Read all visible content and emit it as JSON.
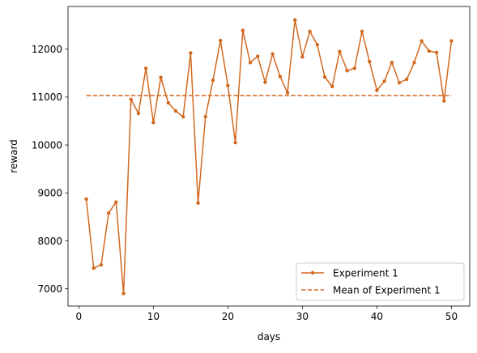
{
  "chart_data": {
    "type": "line",
    "xlabel": "days",
    "ylabel": "reward",
    "xlim": [
      -1.45,
      52.45
    ],
    "ylim": [
      6640,
      12890
    ],
    "x_ticks": [
      0,
      10,
      20,
      30,
      40,
      50
    ],
    "y_ticks": [
      7000,
      8000,
      9000,
      10000,
      11000,
      12000
    ],
    "x_tick_labels": [
      "0",
      "10",
      "20",
      "30",
      "40",
      "50"
    ],
    "y_tick_labels": [
      "7000",
      "8000",
      "9000",
      "10000",
      "11000",
      "12000"
    ],
    "legend_position": "lower-right",
    "series": [
      {
        "name": "Experiment 1",
        "style": "line-with-dot-markers",
        "color": "#d2691e",
        "x": [
          1,
          2,
          3,
          4,
          5,
          6,
          7,
          8,
          9,
          10,
          11,
          12,
          13,
          14,
          15,
          16,
          17,
          18,
          19,
          20,
          21,
          22,
          23,
          24,
          25,
          26,
          27,
          28,
          29,
          30,
          31,
          32,
          33,
          34,
          35,
          36,
          37,
          38,
          39,
          40,
          41,
          42,
          43,
          44,
          45,
          46,
          47,
          48,
          49,
          50
        ],
        "values": [
          8870,
          7430,
          7500,
          8580,
          8810,
          6900,
          10950,
          10660,
          11600,
          10470,
          11410,
          10880,
          10710,
          10590,
          11920,
          8790,
          10590,
          11350,
          12180,
          11240,
          10050,
          12390,
          11720,
          11850,
          11310,
          11900,
          11430,
          11090,
          12610,
          11840,
          12370,
          12090,
          11420,
          11220,
          11950,
          11550,
          11600,
          12370,
          11740,
          11140,
          11330,
          11720,
          11300,
          11370,
          11720,
          12170,
          11960,
          11930,
          10920,
          12170
        ]
      },
      {
        "name": "Mean of Experiment 1",
        "style": "dashed",
        "color": "#d2691e",
        "x": [
          1,
          50
        ],
        "values": [
          11032,
          11032
        ]
      }
    ]
  }
}
